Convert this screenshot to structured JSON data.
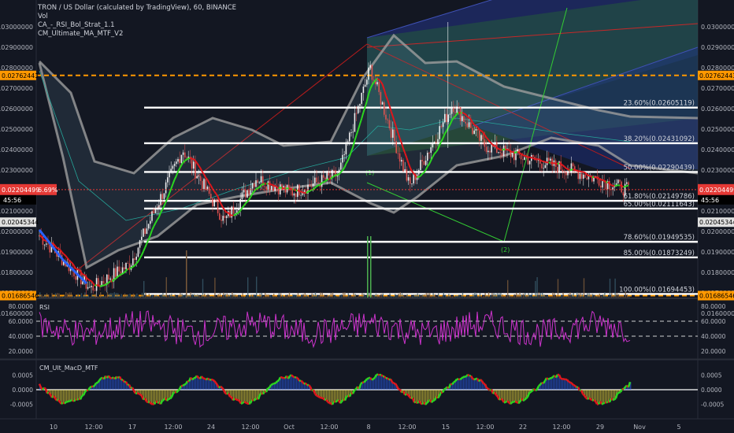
{
  "header": {
    "title": "TRON / US Dollar (calculated by TradingView), 60, BINANCE",
    "indicators": [
      "Vol",
      "CA_-_RSI_Bol_Strat_1.1",
      "CM_Ultimate_MA_MTF_V2"
    ]
  },
  "colors": {
    "background": "#131722",
    "up": "#26a69a",
    "down": "#ef5350",
    "ma_up": "#2bd620",
    "ma_down": "#e0161b",
    "bands": "#9e9e9e",
    "fib": "#ffffff",
    "orange": "#ff9800",
    "rsi": "#cc33cc",
    "price_box": "#e53935"
  },
  "price_axis": {
    "ticks": [
      "0.03000000",
      "0.02900000",
      "0.02800000",
      "0.02700000",
      "0.02600000",
      "0.02500000",
      "0.02400000",
      "0.02300000",
      "0.02200000",
      "0.02100000",
      "0.02000000",
      "0.01900000",
      "0.01800000",
      "0.01700000",
      "0.01600000"
    ],
    "current_price": "0.02204499",
    "change": "6.69%",
    "countdown": "45:56",
    "tag_upper": "0.02762443",
    "tag_lower": "0.01686546",
    "tag_right2": "0.02045344"
  },
  "fib_levels": [
    {
      "text": "23.60%(0.02605119)"
    },
    {
      "text": "38.20%(0.02431092)"
    },
    {
      "text": "50.00%(0.02290439)"
    },
    {
      "text": "61.80%(0.02149786)"
    },
    {
      "text": "65.00%(0.02111643)"
    },
    {
      "text": "78.60%(0.01949535)"
    },
    {
      "text": "85.00%(0.01873249)"
    },
    {
      "text": "100.00%(0.01694453)"
    }
  ],
  "wave_labels": [
    "(1)",
    "(2)"
  ],
  "rsi": {
    "label": "RSI",
    "ticks": [
      "80.0000",
      "60.0000",
      "40.0000",
      "20.0000"
    ]
  },
  "macd": {
    "label": "CM_Ult_MacD_MTF",
    "ticks": [
      "0.0005",
      "0.0000",
      "-0.0005"
    ]
  },
  "time_axis": {
    "labels": [
      "10",
      "12:00",
      "17",
      "12:00",
      "24",
      "12:00",
      "Oct",
      "12:00",
      "8",
      "12:00",
      "15",
      "12:00",
      "22",
      "12:00",
      "29",
      "Nov",
      "5"
    ]
  },
  "chart_data": {
    "type": "candlestick",
    "symbol": "TRXUSD",
    "timeframe": "60",
    "exchange": "BINANCE",
    "ylim": [
      0.0155,
      0.0305
    ],
    "series": [
      {
        "name": "price path (approx.)",
        "x": [
          "10",
          "12:00",
          "17",
          "12:00",
          "24",
          "12:00",
          "Oct",
          "12:00",
          "8",
          "12:00",
          "15",
          "12:00",
          "22",
          "12:00",
          "29"
        ],
        "values": [
          0.0198,
          0.0172,
          0.0184,
          0.024,
          0.0205,
          0.0226,
          0.0219,
          0.0228,
          0.028,
          0.0222,
          0.0262,
          0.0242,
          0.0236,
          0.023,
          0.022
        ]
      }
    ],
    "annotations": [
      {
        "type": "fibonacci_retracement",
        "levels": [
          0.02605119,
          0.02431092,
          0.02290439,
          0.02149786,
          0.02111643,
          0.01949535,
          0.01873249,
          0.01694453
        ]
      },
      {
        "type": "horizontal_line",
        "value": 0.02762443
      },
      {
        "type": "horizontal_line",
        "value": 0.01686546
      }
    ]
  }
}
